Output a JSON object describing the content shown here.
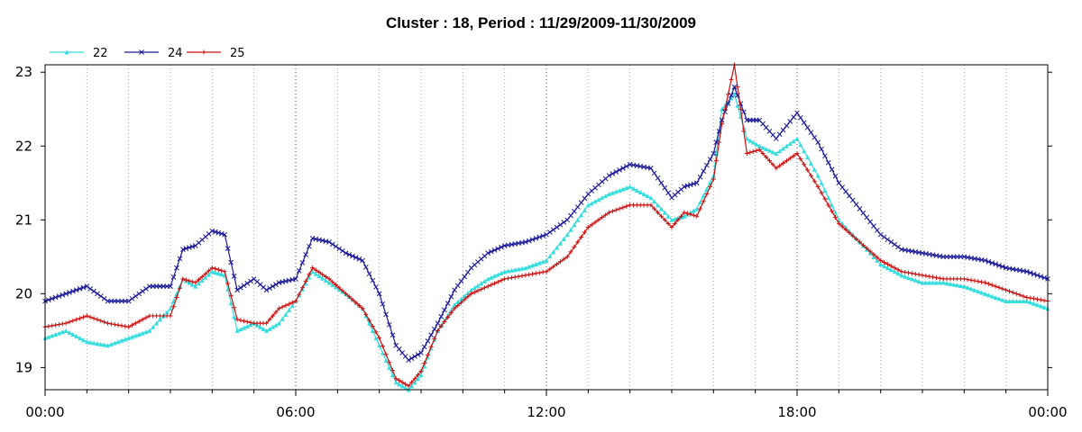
{
  "chart_data": {
    "type": "line",
    "title": "Cluster : 18, Period : 11/29/2009-11/30/2009",
    "xlabel": "",
    "ylabel": "",
    "x_ticks": [
      "00:00",
      "06:00",
      "12:00",
      "18:00",
      "00:00"
    ],
    "x_range_hours": [
      0,
      24
    ],
    "y_ticks": [
      "19",
      "20",
      "21",
      "22",
      "23"
    ],
    "ylim": [
      18.7,
      23.1
    ],
    "grid": "dotted vertical",
    "legend": "top-left",
    "x_hours": [
      0,
      0.5,
      1,
      1.5,
      2,
      2.5,
      3,
      3.3,
      3.6,
      4,
      4.3,
      4.6,
      5,
      5.3,
      5.6,
      6,
      6.4,
      6.8,
      7.2,
      7.6,
      8,
      8.4,
      8.7,
      9,
      9.4,
      9.8,
      10.2,
      10.6,
      11,
      11.5,
      12,
      12.5,
      13,
      13.5,
      14,
      14.5,
      15,
      15.3,
      15.6,
      16,
      16.2,
      16.5,
      16.8,
      17.1,
      17.5,
      18,
      18.5,
      19,
      19.5,
      20,
      20.5,
      21,
      21.5,
      22,
      22.5,
      23,
      23.5,
      24
    ],
    "series": [
      {
        "name": "22",
        "color": "#33dddd",
        "marker": "triangle",
        "values": [
          19.4,
          19.5,
          19.35,
          19.3,
          19.4,
          19.5,
          19.8,
          20.2,
          20.1,
          20.3,
          20.25,
          19.5,
          19.6,
          19.5,
          19.6,
          19.9,
          20.3,
          20.15,
          20.0,
          19.8,
          19.3,
          18.8,
          18.7,
          18.9,
          19.5,
          19.85,
          20.05,
          20.2,
          20.3,
          20.35,
          20.45,
          20.8,
          21.2,
          21.35,
          21.45,
          21.3,
          21.0,
          21.05,
          21.15,
          21.6,
          22.5,
          22.7,
          22.1,
          22.0,
          21.9,
          22.1,
          21.6,
          21.0,
          20.7,
          20.4,
          20.25,
          20.15,
          20.15,
          20.1,
          20.0,
          19.9,
          19.9,
          19.8
        ]
      },
      {
        "name": "24",
        "color": "#1a1a99",
        "marker": "x",
        "values": [
          19.9,
          20.0,
          20.1,
          19.9,
          19.9,
          20.1,
          20.1,
          20.6,
          20.65,
          20.85,
          20.8,
          20.05,
          20.2,
          20.05,
          20.15,
          20.2,
          20.75,
          20.7,
          20.55,
          20.45,
          20.0,
          19.3,
          19.1,
          19.2,
          19.6,
          20.05,
          20.35,
          20.55,
          20.65,
          20.7,
          20.8,
          21.0,
          21.35,
          21.6,
          21.75,
          21.7,
          21.3,
          21.45,
          21.5,
          21.9,
          22.35,
          22.8,
          22.35,
          22.35,
          22.1,
          22.45,
          22.05,
          21.5,
          21.15,
          20.8,
          20.6,
          20.55,
          20.5,
          20.5,
          20.45,
          20.35,
          20.3,
          20.2
        ]
      },
      {
        "name": "25",
        "color": "#cc1111",
        "marker": "plus",
        "values": [
          19.55,
          19.6,
          19.7,
          19.6,
          19.55,
          19.7,
          19.7,
          20.2,
          20.15,
          20.35,
          20.3,
          19.65,
          19.6,
          19.6,
          19.8,
          19.9,
          20.35,
          20.2,
          20.0,
          19.8,
          19.4,
          18.85,
          18.75,
          18.95,
          19.5,
          19.8,
          20.0,
          20.1,
          20.2,
          20.25,
          20.3,
          20.5,
          20.9,
          21.1,
          21.2,
          21.2,
          20.9,
          21.1,
          21.05,
          21.55,
          22.3,
          23.1,
          21.9,
          21.95,
          21.7,
          21.9,
          21.45,
          20.95,
          20.7,
          20.45,
          20.3,
          20.25,
          20.2,
          20.2,
          20.15,
          20.05,
          19.95,
          19.9
        ]
      }
    ]
  }
}
